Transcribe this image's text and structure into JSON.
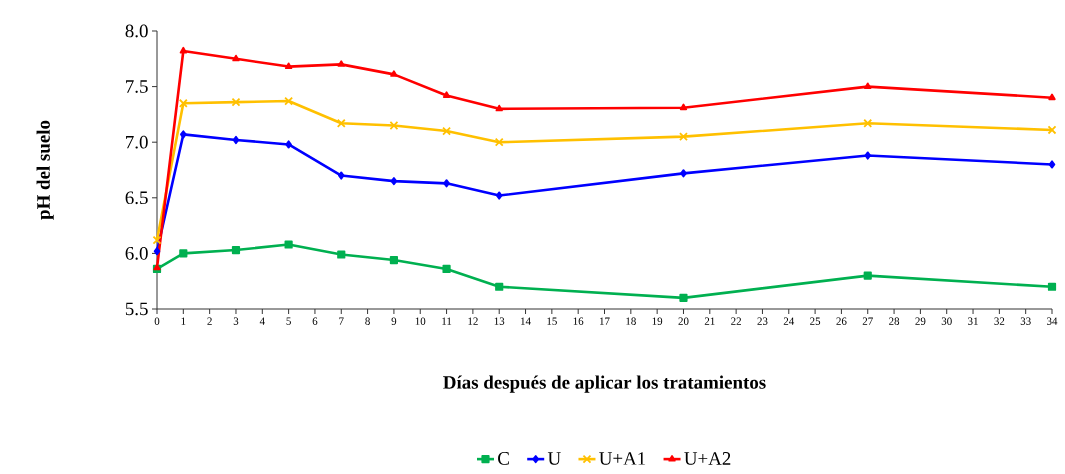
{
  "chart_data": {
    "type": "line",
    "xlabel": "Días después de aplicar los tratamientos",
    "ylabel": "pH del suelo",
    "x": [
      0,
      1,
      3,
      5,
      7,
      9,
      11,
      13,
      20,
      27,
      34
    ],
    "series": [
      {
        "name": "C",
        "color": "#00b050",
        "marker": "square",
        "values": [
          5.86,
          6.0,
          6.03,
          6.08,
          5.99,
          5.94,
          5.86,
          5.7,
          5.6,
          5.8,
          5.7
        ]
      },
      {
        "name": "U",
        "color": "#0000ff",
        "marker": "diamond",
        "values": [
          6.02,
          7.07,
          7.02,
          6.98,
          6.7,
          6.65,
          6.63,
          6.52,
          6.72,
          6.88,
          6.8
        ]
      },
      {
        "name": "U+A1",
        "color": "#ffc000",
        "marker": "cross",
        "values": [
          6.12,
          7.35,
          7.36,
          7.37,
          7.17,
          7.15,
          7.1,
          7.0,
          7.05,
          7.17,
          7.11
        ]
      },
      {
        "name": "U+A2",
        "color": "#ff0000",
        "marker": "triangle",
        "values": [
          5.87,
          7.82,
          7.75,
          7.68,
          7.7,
          7.61,
          7.42,
          7.3,
          7.31,
          7.5,
          7.4
        ]
      }
    ],
    "xlim": [
      0,
      34
    ],
    "xticks": [
      0,
      1,
      2,
      3,
      4,
      5,
      6,
      7,
      8,
      9,
      10,
      11,
      12,
      13,
      14,
      15,
      16,
      17,
      18,
      19,
      20,
      21,
      22,
      23,
      24,
      25,
      26,
      27,
      28,
      29,
      30,
      31,
      32,
      33,
      34
    ],
    "ylim": [
      5.5,
      8.0
    ],
    "yticks": [
      5.5,
      {
        "value": 6.0,
        "label": "6.0"
      },
      6.5,
      {
        "value": 7.0,
        "label": "7.0"
      },
      7.5,
      {
        "value": 8.0,
        "label": "8.0"
      }
    ],
    "legend": "bottom",
    "grid": false,
    "line_style": "solid"
  }
}
